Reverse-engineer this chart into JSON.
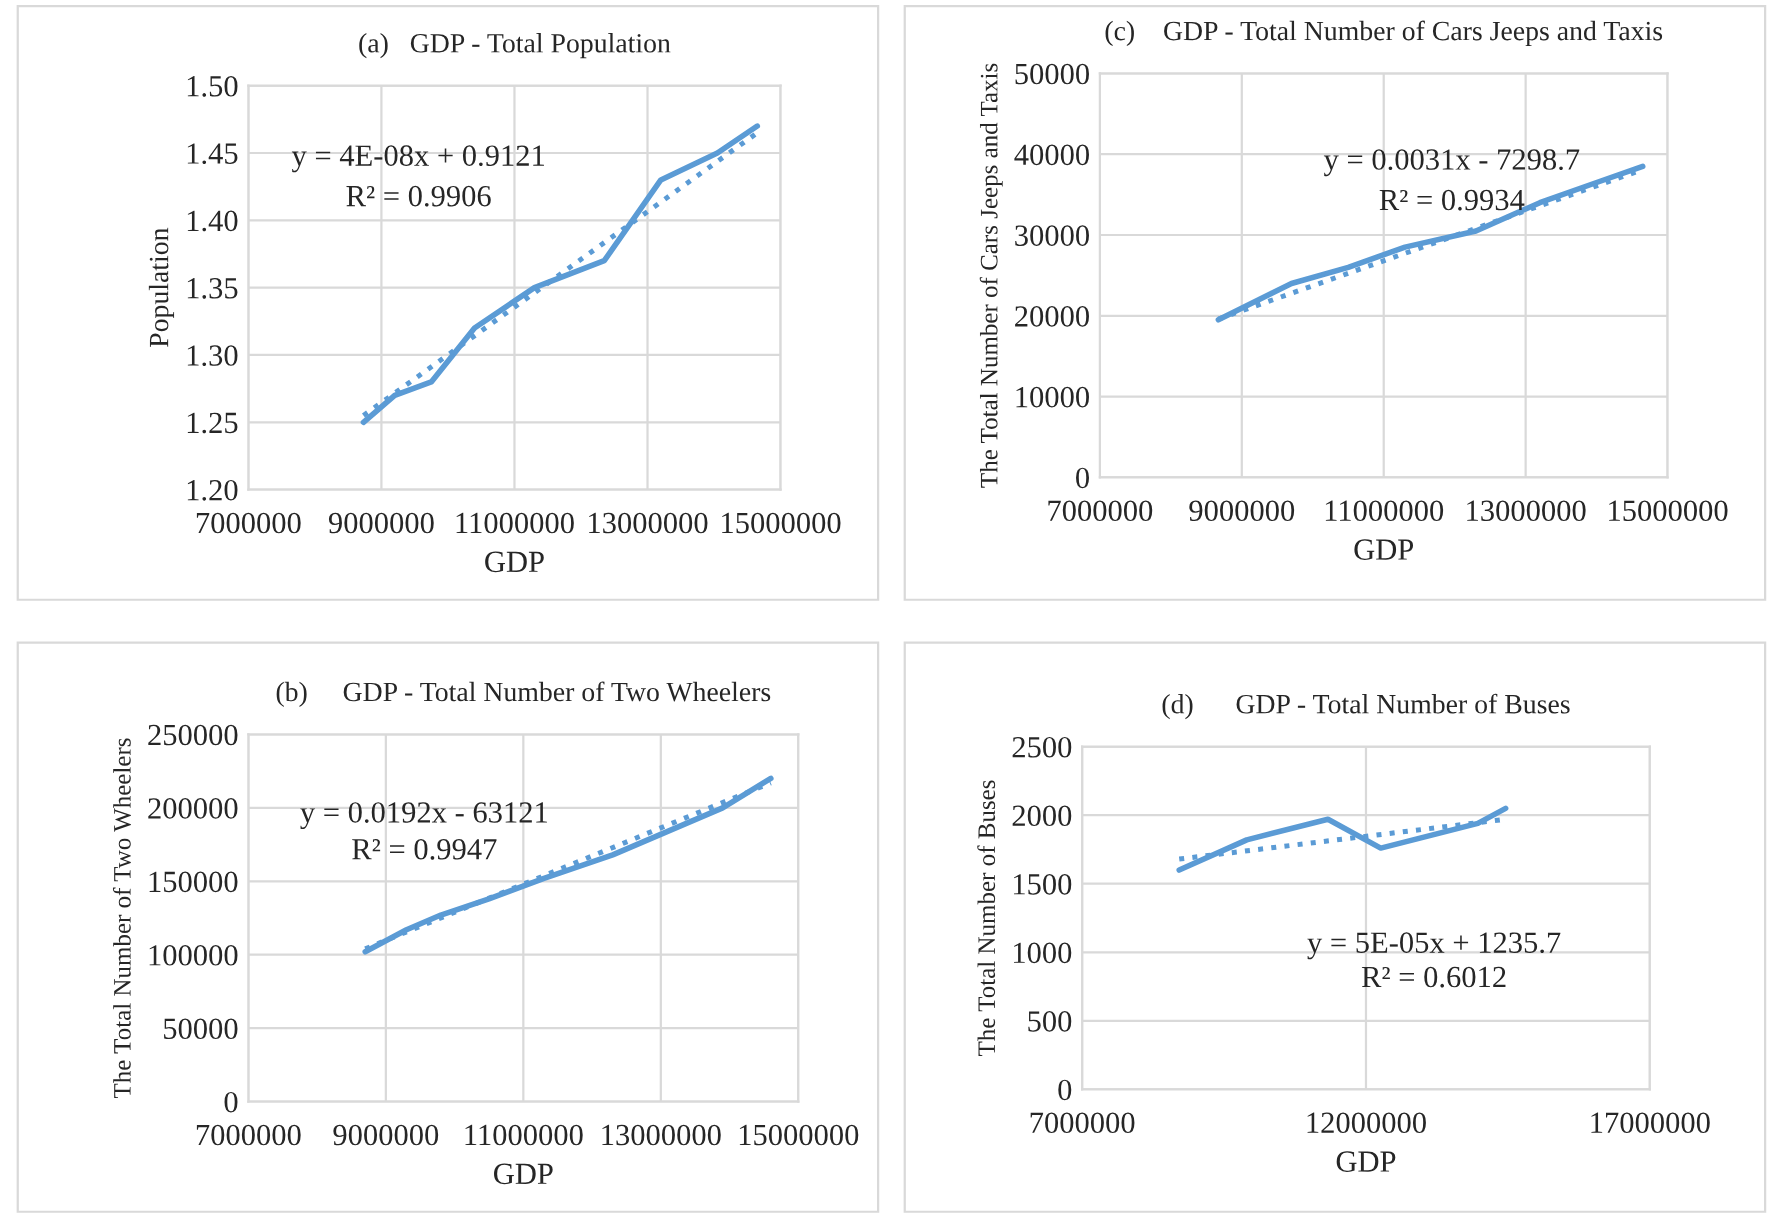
{
  "chart_data": [
    {
      "type": "line",
      "title": "(a)   GDP - Total Population",
      "xlabel": "GDP",
      "ylabel": "Population",
      "xlim": [
        7000000,
        15000000
      ],
      "xticks": [
        7000000,
        9000000,
        11000000,
        13000000,
        15000000
      ],
      "ylim": [
        1.2,
        1.5
      ],
      "yticks": [
        {
          "value": 1.2,
          "label": "1.20"
        },
        {
          "value": 1.25,
          "label": "1.25"
        },
        {
          "value": 1.3,
          "label": "1.30"
        },
        {
          "value": 1.35,
          "label": "1.35"
        },
        {
          "value": 1.4,
          "label": "1.40"
        },
        {
          "value": 1.45,
          "label": "1.45"
        },
        {
          "value": 1.5,
          "label": "1.50"
        }
      ],
      "grid": true,
      "series": [
        {
          "color": "#5b9bd5",
          "x": [
            8730000,
            9200000,
            9750000,
            10400000,
            11300000,
            12350000,
            13200000,
            14050000,
            14650000
          ],
          "values": [
            1.25,
            1.27,
            1.28,
            1.32,
            1.35,
            1.37,
            1.43,
            1.45,
            1.47
          ],
          "line_style": "solid"
        },
        {
          "color": "#5b9bd5",
          "x": [
            8730000,
            14650000
          ],
          "values": [
            1.255,
            1.465
          ],
          "line_style": "dotted"
        }
      ],
      "annotations": [
        "y = 4E-08x + 0.9121",
        "R² = 0.9906"
      ]
    },
    {
      "type": "line",
      "title": "(c)    GDP - Total Number of Cars Jeeps and Taxis",
      "xlabel": "GDP",
      "ylabel": "The Total Number of Cars Jeeps and Taxis",
      "xlim": [
        7000000,
        15000000
      ],
      "xticks": [
        7000000,
        9000000,
        11000000,
        13000000,
        15000000
      ],
      "ylim": [
        0,
        50000
      ],
      "yticks": [
        0,
        10000,
        20000,
        30000,
        40000,
        50000
      ],
      "grid": true,
      "series": [
        {
          "color": "#5b9bd5",
          "x": [
            8670000,
            9700000,
            10500000,
            11300000,
            12300000,
            13200000,
            14000000,
            14650000
          ],
          "values": [
            19500,
            24000,
            26000,
            28500,
            30500,
            34000,
            36500,
            38500
          ],
          "line_style": "solid"
        },
        {
          "color": "#5b9bd5",
          "x": [
            8670000,
            14650000
          ],
          "values": [
            19600,
            38100
          ],
          "line_style": "dotted"
        }
      ],
      "annotations": [
        "y = 0.0031x - 7298.7",
        "R² = 0.9934"
      ]
    },
    {
      "type": "line",
      "title": "(b)     GDP - Total Number of Two Wheelers",
      "xlabel": "GDP",
      "ylabel": "The Total Number of Two Wheelers",
      "xlim": [
        7000000,
        15000000
      ],
      "xticks": [
        7000000,
        9000000,
        11000000,
        13000000,
        15000000
      ],
      "ylim": [
        0,
        250000
      ],
      "yticks": [
        0,
        50000,
        100000,
        150000,
        200000,
        250000
      ],
      "grid": true,
      "series": [
        {
          "color": "#5b9bd5",
          "x": [
            8700000,
            9300000,
            9800000,
            10500000,
            11300000,
            12300000,
            13100000,
            13900000,
            14600000
          ],
          "values": [
            102000,
            117000,
            127000,
            138000,
            152000,
            168000,
            184000,
            200000,
            220000
          ],
          "line_style": "solid"
        },
        {
          "color": "#5b9bd5",
          "x": [
            8700000,
            14600000
          ],
          "values": [
            104000,
            217000
          ],
          "line_style": "dotted"
        }
      ],
      "annotations": [
        "y = 0.0192x - 63121",
        "R² = 0.9947"
      ]
    },
    {
      "type": "line",
      "title": "(d)      GDP - Total Number of Buses",
      "xlabel": "GDP",
      "ylabel": "The Total Number of Buses",
      "xlim": [
        7000000,
        17000000
      ],
      "xticks": [
        7000000,
        12000000,
        17000000
      ],
      "ylim": [
        0,
        2500
      ],
      "yticks": [
        0,
        500,
        1000,
        1500,
        2000,
        2500
      ],
      "grid": true,
      "series": [
        {
          "color": "#5b9bd5",
          "x": [
            8710000,
            9900000,
            11330000,
            12260000,
            13970000,
            14460000
          ],
          "values": [
            1600,
            1820,
            1970,
            1760,
            1940,
            2050
          ],
          "line_style": "solid"
        },
        {
          "color": "#5b9bd5",
          "x": [
            8710000,
            14460000
          ],
          "values": [
            1680,
            1970
          ],
          "line_style": "dotted"
        }
      ],
      "annotations": [
        "y = 5E-05x + 1235.7",
        "R² = 0.6012"
      ]
    }
  ]
}
